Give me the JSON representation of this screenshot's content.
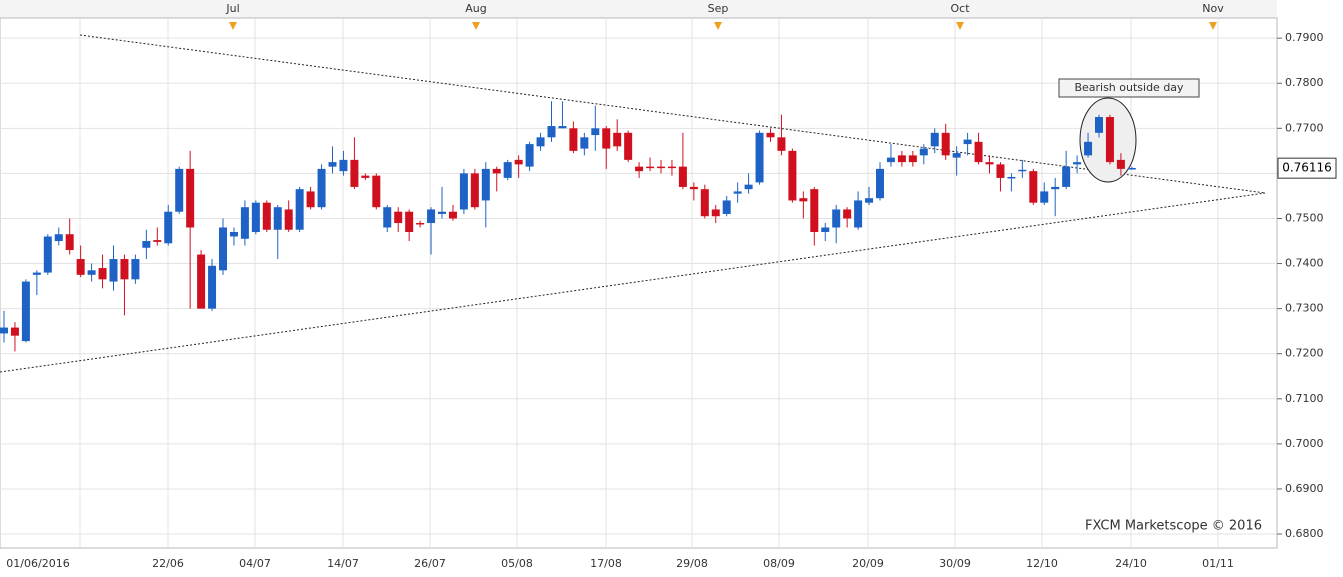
{
  "chart_data": {
    "type": "candlestick",
    "up_color": "#1f62c6",
    "down_color": "#d0101e",
    "open": [
      0.7245,
      0.7258,
      0.7228,
      0.7375,
      0.738,
      0.745,
      0.7465,
      0.741,
      0.7375,
      0.739,
      0.736,
      0.741,
      0.7365,
      0.7435,
      0.7452,
      0.7445,
      0.7515,
      0.761,
      0.742,
      0.73,
      0.7385,
      0.746,
      0.7455,
      0.747,
      0.7535,
      0.7475,
      0.752,
      0.7475,
      0.756,
      0.7525,
      0.7615,
      0.7605,
      0.763,
      0.7595,
      0.7595,
      0.748,
      0.7515,
      0.7515,
      0.749,
      0.749,
      0.751,
      0.7515,
      0.752,
      0.76,
      0.754,
      0.761,
      0.759,
      0.763,
      0.7615,
      0.766,
      0.768,
      0.77,
      0.77,
      0.7655,
      0.7685,
      0.77,
      0.769,
      0.769,
      0.7615,
      0.7615,
      0.7615,
      0.7615,
      0.7615,
      0.757,
      0.7565,
      0.752,
      0.751,
      0.7555,
      0.7565,
      0.758,
      0.769,
      0.768,
      0.765,
      0.7545,
      0.7565,
      0.747,
      0.748,
      0.752,
      0.748,
      0.7535,
      0.7545,
      0.7625,
      0.764,
      0.764,
      0.764,
      0.766,
      0.769,
      0.7635,
      0.7665,
      0.767,
      0.7625,
      0.762,
      0.759,
      0.7605,
      0.7605,
      0.7535,
      0.7565,
      0.757,
      0.762,
      0.764,
      0.769,
      0.7725,
      0.763,
      0.761
    ],
    "high": [
      0.7295,
      0.727,
      0.7365,
      0.7385,
      0.7465,
      0.748,
      0.75,
      0.744,
      0.74,
      0.742,
      0.744,
      0.742,
      0.742,
      0.7475,
      0.748,
      0.753,
      0.7615,
      0.765,
      0.743,
      0.741,
      0.75,
      0.748,
      0.754,
      0.754,
      0.754,
      0.753,
      0.754,
      0.757,
      0.757,
      0.762,
      0.766,
      0.765,
      0.768,
      0.76,
      0.76,
      0.753,
      0.7525,
      0.752,
      0.7495,
      0.7525,
      0.757,
      0.753,
      0.761,
      0.761,
      0.7625,
      0.7615,
      0.763,
      0.764,
      0.767,
      0.769,
      0.776,
      0.776,
      0.7715,
      0.769,
      0.775,
      0.7705,
      0.772,
      0.7695,
      0.7625,
      0.7635,
      0.763,
      0.763,
      0.769,
      0.758,
      0.7575,
      0.753,
      0.755,
      0.758,
      0.76,
      0.7695,
      0.77,
      0.773,
      0.7655,
      0.756,
      0.757,
      0.749,
      0.753,
      0.7525,
      0.756,
      0.757,
      0.7625,
      0.7665,
      0.765,
      0.765,
      0.7665,
      0.77,
      0.771,
      0.766,
      0.769,
      0.769,
      0.764,
      0.7625,
      0.76,
      0.763,
      0.761,
      0.758,
      0.759,
      0.765,
      0.764,
      0.769,
      0.773,
      0.773,
      0.7645,
      0.7615
    ],
    "low": [
      0.7225,
      0.7205,
      0.7225,
      0.733,
      0.7375,
      0.744,
      0.742,
      0.737,
      0.736,
      0.7345,
      0.734,
      0.7285,
      0.7355,
      0.741,
      0.744,
      0.744,
      0.751,
      0.73,
      0.73,
      0.7295,
      0.7375,
      0.744,
      0.744,
      0.7465,
      0.747,
      0.741,
      0.747,
      0.747,
      0.752,
      0.752,
      0.76,
      0.7595,
      0.7565,
      0.7585,
      0.752,
      0.747,
      0.747,
      0.745,
      0.748,
      0.742,
      0.75,
      0.7495,
      0.751,
      0.752,
      0.748,
      0.756,
      0.7585,
      0.759,
      0.7605,
      0.765,
      0.767,
      0.77,
      0.7645,
      0.764,
      0.765,
      0.761,
      0.765,
      0.7625,
      0.759,
      0.7605,
      0.76,
      0.7595,
      0.7565,
      0.754,
      0.75,
      0.749,
      0.7505,
      0.7535,
      0.7555,
      0.7575,
      0.767,
      0.764,
      0.7535,
      0.75,
      0.744,
      0.745,
      0.7445,
      0.748,
      0.7475,
      0.753,
      0.754,
      0.7615,
      0.7615,
      0.7615,
      0.762,
      0.7645,
      0.763,
      0.7595,
      0.764,
      0.762,
      0.76,
      0.756,
      0.756,
      0.759,
      0.753,
      0.753,
      0.7505,
      0.7565,
      0.76,
      0.7635,
      0.768,
      0.762,
      0.7595,
      0.7608
    ],
    "close": [
      0.7258,
      0.724,
      0.736,
      0.738,
      0.746,
      0.7465,
      0.743,
      0.7375,
      0.7385,
      0.7365,
      0.741,
      0.7365,
      0.741,
      0.745,
      0.7448,
      0.7515,
      0.761,
      0.748,
      0.73,
      0.7395,
      0.748,
      0.747,
      0.7525,
      0.7535,
      0.7475,
      0.7525,
      0.7475,
      0.7565,
      0.7525,
      0.761,
      0.7625,
      0.763,
      0.757,
      0.759,
      0.7525,
      0.7525,
      0.749,
      0.747,
      0.7488,
      0.752,
      0.7515,
      0.75,
      0.76,
      0.7525,
      0.761,
      0.76,
      0.7625,
      0.762,
      0.7665,
      0.768,
      0.7705,
      0.7705,
      0.765,
      0.768,
      0.77,
      0.7655,
      0.766,
      0.763,
      0.7605,
      0.7613,
      0.7612,
      0.7612,
      0.757,
      0.7565,
      0.7505,
      0.7505,
      0.754,
      0.756,
      0.7575,
      0.769,
      0.768,
      0.765,
      0.754,
      0.7538,
      0.747,
      0.748,
      0.752,
      0.75,
      0.754,
      0.7545,
      0.761,
      0.7635,
      0.7625,
      0.7625,
      0.7655,
      0.769,
      0.764,
      0.7645,
      0.7675,
      0.7625,
      0.762,
      0.759,
      0.7592,
      0.7608,
      0.7535,
      0.756,
      0.757,
      0.7615,
      0.7625,
      0.767,
      0.7725,
      0.7625,
      0.761,
      0.7612
    ],
    "ylim": [
      0.6769,
      0.7907
    ],
    "yticks": [
      {
        "value": 0.79,
        "label": "0.7900"
      },
      {
        "value": 0.78,
        "label": "0.7800"
      },
      {
        "value": 0.77,
        "label": "0.7700"
      },
      {
        "value": 0.76,
        "label": "0.7600"
      },
      {
        "value": 0.75,
        "label": "0.7500"
      },
      {
        "value": 0.74,
        "label": "0.7400"
      },
      {
        "value": 0.73,
        "label": "0.7300"
      },
      {
        "value": 0.72,
        "label": "0.7200"
      },
      {
        "value": 0.71,
        "label": "0.7100"
      },
      {
        "value": 0.7,
        "label": "0.7000"
      },
      {
        "value": 0.69,
        "label": "0.6900"
      },
      {
        "value": 0.68,
        "label": "0.6800"
      }
    ],
    "last_price": 0.76116,
    "x_labels": [
      "01/06/2016",
      "22/06",
      "04/07",
      "14/07",
      "26/07",
      "05/08",
      "17/08",
      "29/08",
      "08/09",
      "20/09",
      "30/09",
      "12/10",
      "24/10",
      "01/11"
    ],
    "month_labels": [
      "Jul",
      "Aug",
      "Sep",
      "Oct",
      "Nov"
    ],
    "annotation": "Bearish outside day",
    "credit": "FXCM Marketscope © 2016"
  }
}
